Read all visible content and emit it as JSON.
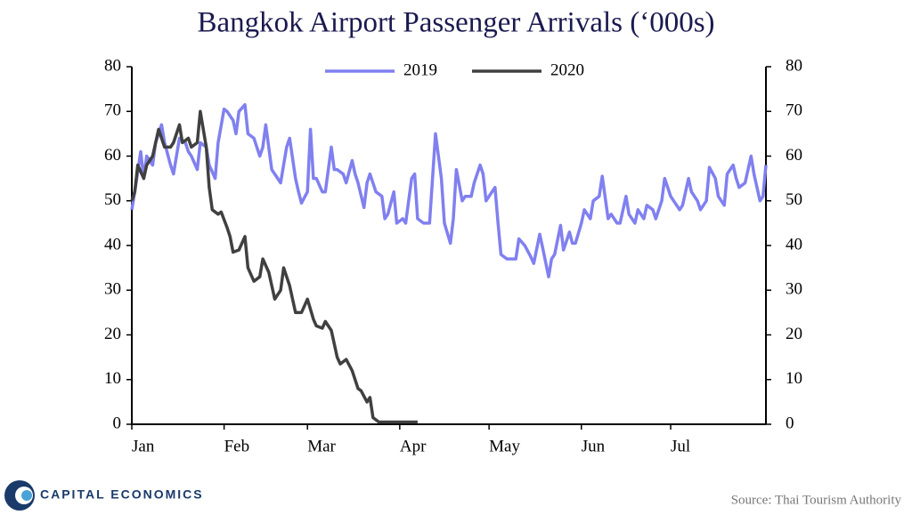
{
  "chart_data": {
    "type": "line",
    "title": "Bangkok Airport Passenger Arrivals (‘000s)",
    "source": "Source: Thai Tourism Authority",
    "brand": "CAPITAL ECONOMICS",
    "xlim": [
      0,
      213
    ],
    "xticks": [
      {
        "value": 0,
        "label": "Jan"
      },
      {
        "value": 31,
        "label": "Feb"
      },
      {
        "value": 59,
        "label": "Mar"
      },
      {
        "value": 90,
        "label": "Apr"
      },
      {
        "value": 120,
        "label": "May"
      },
      {
        "value": 151,
        "label": "Jun"
      },
      {
        "value": 181,
        "label": "Jul"
      }
    ],
    "ylim": [
      0,
      80
    ],
    "yticks": [
      0,
      10,
      20,
      30,
      40,
      50,
      60,
      70,
      80
    ],
    "y2lim": [
      0,
      80
    ],
    "y2ticks": [
      0,
      10,
      20,
      30,
      40,
      50,
      60,
      70,
      80
    ],
    "legend": "top",
    "series": [
      {
        "name": "2019",
        "color": "#8080f0",
        "x": [
          0,
          1,
          3,
          4,
          5,
          7,
          8,
          10,
          11,
          13,
          14,
          16,
          18,
          19,
          20,
          22,
          23,
          25,
          26,
          28,
          29,
          31,
          32,
          34,
          35,
          36,
          38,
          39,
          41,
          43,
          44,
          45,
          47,
          49,
          50,
          52,
          53,
          55,
          56,
          57,
          59,
          60,
          61,
          62,
          64,
          65,
          67,
          68,
          69,
          71,
          72,
          74,
          75,
          76,
          78,
          79,
          80,
          82,
          84,
          85,
          86,
          88,
          89,
          91,
          92,
          94,
          95,
          96,
          98,
          100,
          102,
          104,
          105,
          107,
          108,
          109,
          111,
          112,
          114,
          115,
          117,
          118,
          119,
          120,
          122,
          123,
          124,
          126,
          127,
          129,
          130,
          132,
          134,
          135,
          137,
          138,
          140,
          141,
          142,
          144,
          145,
          147,
          148,
          149,
          151,
          152,
          154,
          155,
          157,
          158,
          160,
          161,
          163,
          164,
          166,
          167,
          169,
          170,
          172,
          173,
          175,
          176,
          178,
          179,
          181,
          182,
          184,
          185,
          187,
          188,
          190,
          191,
          193,
          194,
          196,
          197,
          199,
          200,
          202,
          203,
          204,
          206,
          208,
          209,
          211,
          212,
          213
        ],
        "values": [
          48,
          52,
          61,
          55,
          60,
          58,
          63,
          67,
          63,
          58,
          56,
          64,
          63,
          61,
          60,
          57,
          63,
          62,
          58,
          55,
          63,
          70.5,
          70,
          68,
          65,
          70,
          71.5,
          65,
          64,
          60,
          62,
          67,
          57,
          55,
          54,
          62,
          64,
          55,
          52,
          49.5,
          52,
          66,
          55,
          55,
          52,
          52,
          62,
          57,
          57,
          56,
          54,
          59,
          56,
          54,
          48.5,
          54,
          56,
          52,
          51,
          46,
          47,
          52,
          45,
          46,
          45,
          55,
          56,
          46,
          45,
          45,
          65,
          55,
          45,
          40.5,
          46,
          57,
          50,
          51,
          51,
          54,
          58,
          56,
          50,
          51,
          53,
          45,
          38,
          37,
          37,
          37,
          41.5,
          40,
          37.5,
          36,
          42.5,
          39.5,
          33,
          37,
          38,
          44.5,
          39,
          43,
          40.5,
          40.5,
          45,
          48,
          46,
          50,
          51,
          55.5,
          46,
          47,
          45,
          45,
          51,
          47,
          45,
          48,
          46,
          49,
          48,
          46,
          50,
          55,
          51,
          50,
          48,
          49,
          55,
          52,
          50,
          48,
          50,
          57.5,
          55,
          51,
          49,
          56,
          58,
          55,
          53,
          54,
          60,
          56,
          50,
          51,
          58
        ]
      },
      {
        "name": "2020",
        "color": "#404040",
        "x": [
          0,
          1,
          2,
          4,
          5,
          7,
          9,
          11,
          13,
          14,
          16,
          17,
          19,
          20,
          22,
          23,
          25,
          26,
          27,
          29,
          30,
          32,
          33,
          34,
          36,
          38,
          39,
          41,
          43,
          44,
          46,
          48,
          50,
          51,
          53,
          55,
          57,
          59,
          61,
          62,
          64,
          65,
          67,
          69,
          70,
          72,
          74,
          76,
          77,
          79,
          80,
          81,
          83,
          85,
          91,
          96
        ],
        "values": [
          50,
          52,
          58,
          55,
          58,
          60,
          66,
          62,
          62,
          63,
          67,
          63,
          64,
          62,
          63,
          70,
          62,
          53,
          48,
          47,
          47.5,
          44,
          42,
          38.5,
          39,
          42,
          35,
          32,
          33,
          37,
          34,
          28,
          30,
          35,
          31,
          25,
          25,
          28,
          23.5,
          22,
          21.5,
          23,
          21,
          15,
          13.5,
          14.5,
          12,
          8,
          7.5,
          5,
          6,
          1.5,
          0.5,
          0.5,
          0.5,
          0.5
        ]
      }
    ]
  }
}
